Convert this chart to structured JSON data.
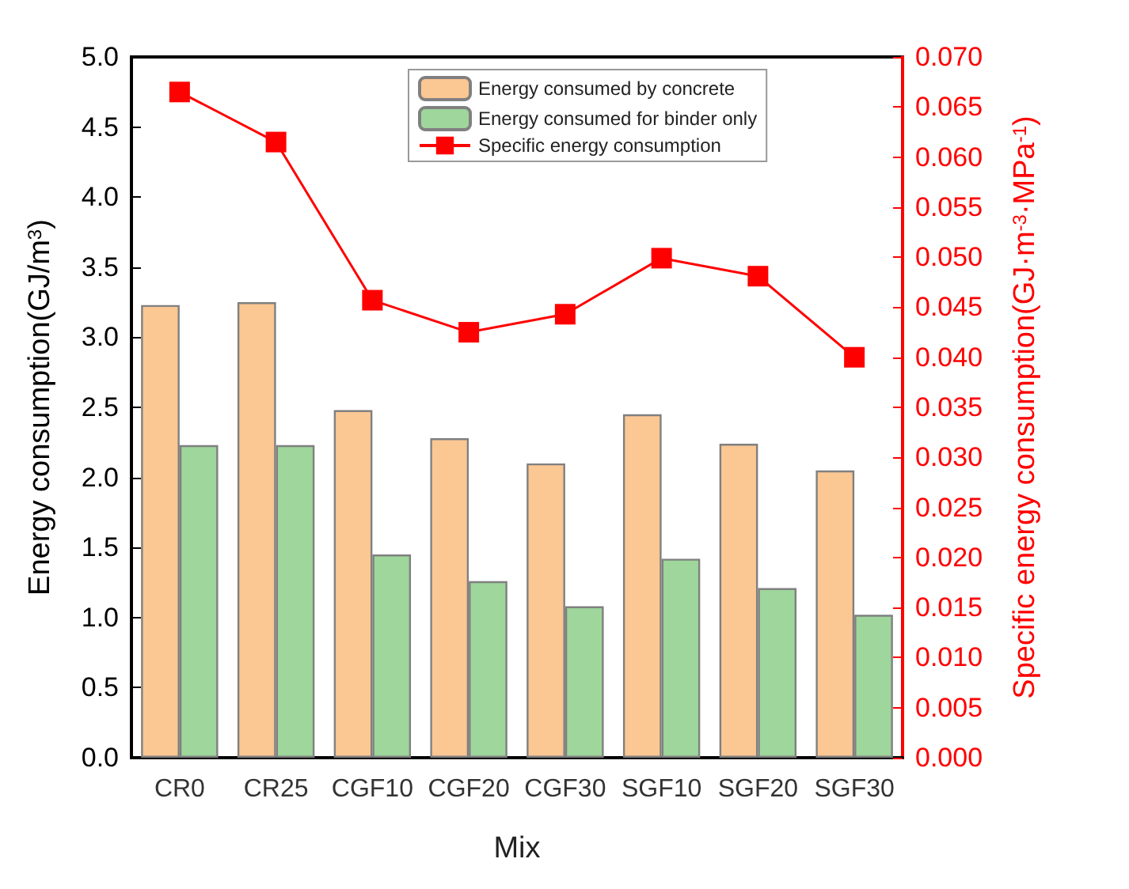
{
  "chart_data": {
    "type": "bar",
    "xlabel": "Mix",
    "ylabel": "Energy consumption(GJ/m$^{3}$)",
    "y2label": "Specific energy consumption(GJ·m$^{-3}$·MPa$^{-1}$)",
    "categories": [
      "CR0",
      "CR25",
      "CGF10",
      "CGF20",
      "CGF30",
      "SGF10",
      "SGF20",
      "SGF30"
    ],
    "series": [
      {
        "name": "Energy consumed by concrete",
        "color": "#fbc793",
        "values": [
          3.23,
          3.25,
          2.48,
          2.28,
          2.1,
          2.45,
          2.24,
          2.05
        ]
      },
      {
        "name": "Energy consumed for binder only",
        "color": "#9ed69b",
        "values": [
          2.23,
          2.23,
          1.45,
          1.26,
          1.08,
          1.42,
          1.21,
          1.02
        ]
      },
      {
        "name": "Specific energy consumption",
        "type": "line",
        "axis": "y2",
        "color": "#ff0000",
        "marker": "square",
        "values": [
          0.0665,
          0.0615,
          0.0457,
          0.0425,
          0.0443,
          0.0499,
          0.0481,
          0.04
        ]
      }
    ],
    "ylim": [
      0,
      5
    ],
    "yticks": [
      {
        "value": 0,
        "label": "0.0"
      },
      {
        "value": 0.5,
        "label": "0.5"
      },
      {
        "value": 1,
        "label": "1.0"
      },
      {
        "value": 1.5,
        "label": "1.5"
      },
      {
        "value": 2,
        "label": "2.0"
      },
      {
        "value": 2.5,
        "label": "2.5"
      },
      {
        "value": 3,
        "label": "3.0"
      },
      {
        "value": 3.5,
        "label": "3.5"
      },
      {
        "value": 4,
        "label": "4.0"
      },
      {
        "value": 4.5,
        "label": "4.5"
      },
      {
        "value": 5,
        "label": "5.0"
      }
    ],
    "y2lim": [
      0,
      0.07
    ],
    "y2ticks": [
      {
        "value": 0,
        "label": "0.000"
      },
      {
        "value": 0.005,
        "label": "0.005"
      },
      {
        "value": 0.01,
        "label": "0.010"
      },
      {
        "value": 0.015,
        "label": "0.015"
      },
      {
        "value": 0.02,
        "label": "0.020"
      },
      {
        "value": 0.025,
        "label": "0.025"
      },
      {
        "value": 0.03,
        "label": "0.030"
      },
      {
        "value": 0.035,
        "label": "0.035"
      },
      {
        "value": 0.04,
        "label": "0.040"
      },
      {
        "value": 0.045,
        "label": "0.045"
      },
      {
        "value": 0.05,
        "label": "0.050"
      },
      {
        "value": 0.055,
        "label": "0.055"
      },
      {
        "value": 0.06,
        "label": "0.060"
      },
      {
        "value": 0.065,
        "label": "0.065"
      },
      {
        "value": 0.07,
        "label": "0.070"
      }
    ],
    "legend": "top",
    "grid": false
  }
}
